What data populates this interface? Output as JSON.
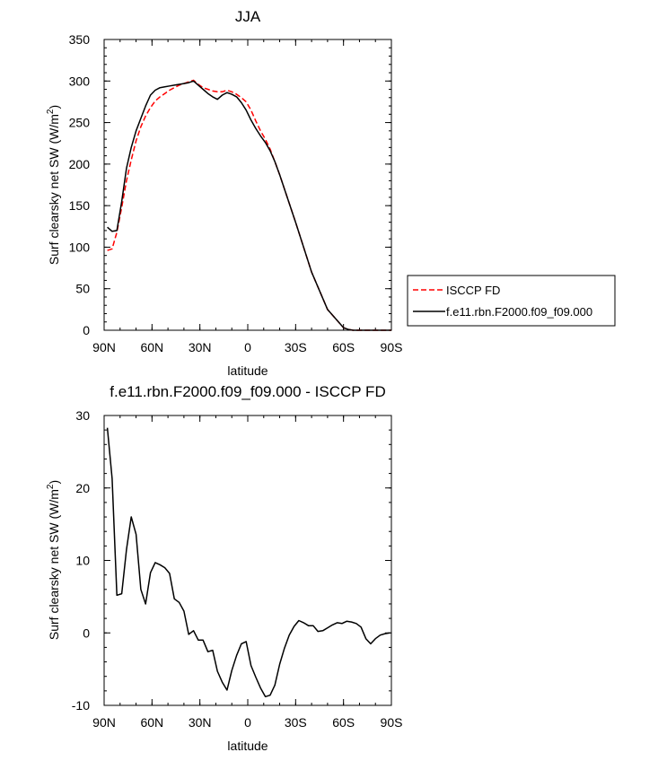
{
  "chart_data": [
    {
      "type": "line",
      "title": "JJA",
      "xlabel": "latitude",
      "ylabel": "Surf clearsky net SW (W/m",
      "ylabel_sup": "2",
      "ylabel_close": ")",
      "xlim": [
        90,
        -90
      ],
      "ylim": [
        0,
        350
      ],
      "x_ticks": [
        {
          "value": 90,
          "label": "90N"
        },
        {
          "value": 60,
          "label": "60N"
        },
        {
          "value": 30,
          "label": "30N"
        },
        {
          "value": 0,
          "label": "0"
        },
        {
          "value": -30,
          "label": "30S"
        },
        {
          "value": -60,
          "label": "60S"
        },
        {
          "value": -90,
          "label": "90S"
        }
      ],
      "y_ticks": [
        0,
        50,
        100,
        150,
        200,
        250,
        300,
        350
      ],
      "legend": {
        "placement": "right"
      },
      "series": [
        {
          "name": "ISCCP FD",
          "color": "#ff0000",
          "dash": "dashed",
          "x": [
            88,
            85,
            82,
            79,
            76,
            73,
            70,
            67,
            64,
            61,
            58,
            55,
            52,
            49,
            46,
            43,
            40,
            37,
            34,
            31,
            28,
            25,
            22,
            19,
            16,
            13,
            10,
            7,
            4,
            1,
            -2,
            -5,
            -8,
            -11,
            -14,
            -17,
            -20,
            -30,
            -40,
            -50,
            -60,
            -63,
            -66,
            -69,
            -72,
            -75,
            -80,
            -85,
            -90
          ],
          "y": [
            96,
            98,
            118,
            148,
            180,
            205,
            228,
            245,
            258,
            268,
            276,
            281,
            285,
            289,
            292,
            295,
            297,
            299,
            301,
            296,
            292,
            290,
            288,
            287,
            287,
            289,
            287,
            284,
            280,
            275,
            265,
            252,
            240,
            230,
            218,
            203,
            187,
            130,
            70,
            25,
            3,
            1,
            0,
            0,
            0,
            0,
            0,
            0,
            0
          ]
        },
        {
          "name": "f.e11.rbn.F2000.f09_f09.000",
          "color": "#000000",
          "dash": "solid",
          "x": [
            88,
            85,
            82,
            79,
            76,
            73,
            70,
            67,
            64,
            61,
            58,
            55,
            52,
            49,
            46,
            43,
            40,
            37,
            34,
            31,
            28,
            25,
            22,
            19,
            16,
            13,
            10,
            7,
            4,
            1,
            -2,
            -5,
            -8,
            -11,
            -14,
            -17,
            -20,
            -30,
            -40,
            -50,
            -60,
            -63,
            -66,
            -69,
            -72,
            -75,
            -80,
            -85,
            -90
          ],
          "y": [
            124,
            119,
            120,
            155,
            195,
            220,
            240,
            255,
            270,
            283,
            289,
            292,
            293,
            294,
            295,
            296,
            297,
            298,
            300,
            295,
            290,
            285,
            281,
            278,
            283,
            286,
            284,
            281,
            274,
            265,
            253,
            243,
            234,
            226,
            216,
            203,
            187,
            130,
            70,
            25,
            3,
            1,
            0,
            0,
            0,
            0,
            0,
            0,
            0
          ]
        }
      ]
    },
    {
      "type": "line",
      "title": "f.e11.rbn.F2000.f09_f09.000 - ISCCP FD",
      "xlabel": "latitude",
      "ylabel": "Surf clearsky net SW (W/m",
      "ylabel_sup": "2",
      "ylabel_close": ")",
      "xlim": [
        90,
        -90
      ],
      "ylim": [
        -10,
        30
      ],
      "x_ticks": [
        {
          "value": 90,
          "label": "90N"
        },
        {
          "value": 60,
          "label": "60N"
        },
        {
          "value": 30,
          "label": "30N"
        },
        {
          "value": 0,
          "label": "0"
        },
        {
          "value": -30,
          "label": "30S"
        },
        {
          "value": -60,
          "label": "60S"
        },
        {
          "value": -90,
          "label": "90S"
        }
      ],
      "y_ticks": [
        -10,
        0,
        10,
        20,
        30
      ],
      "series": [
        {
          "color": "#000000",
          "dash": "solid",
          "x": [
            88,
            85,
            82,
            79,
            76,
            73,
            70,
            67,
            64,
            61,
            58,
            55,
            52,
            49,
            46,
            43,
            40,
            37,
            34,
            31,
            28,
            25,
            22,
            19,
            16,
            13,
            10,
            7,
            4,
            1,
            -2,
            -5,
            -8,
            -11,
            -14,
            -17,
            -20,
            -23,
            -26,
            -29,
            -32,
            -35,
            -38,
            -41,
            -44,
            -47,
            -50,
            -53,
            -56,
            -59,
            -62,
            -65,
            -68,
            -71,
            -74,
            -77,
            -80,
            -83,
            -86,
            -89
          ],
          "y": [
            28.3,
            21.3,
            5.2,
            5.4,
            11.5,
            16.0,
            13.6,
            6.0,
            4.0,
            8.3,
            9.7,
            9.4,
            9.0,
            8.2,
            4.7,
            4.2,
            3.0,
            -0.2,
            0.3,
            -1.0,
            -1.0,
            -2.6,
            -2.4,
            -5.3,
            -6.8,
            -7.9,
            -5.2,
            -3.1,
            -1.5,
            -1.2,
            -4.5,
            -6.1,
            -7.6,
            -8.8,
            -8.6,
            -7.2,
            -4.3,
            -2.1,
            -0.3,
            0.9,
            1.7,
            1.4,
            1.0,
            1.0,
            0.2,
            0.3,
            0.7,
            1.1,
            1.4,
            1.3,
            1.6,
            1.5,
            1.3,
            0.8,
            -0.8,
            -1.5,
            -0.8,
            -0.3,
            -0.1,
            0.0
          ]
        }
      ]
    }
  ]
}
